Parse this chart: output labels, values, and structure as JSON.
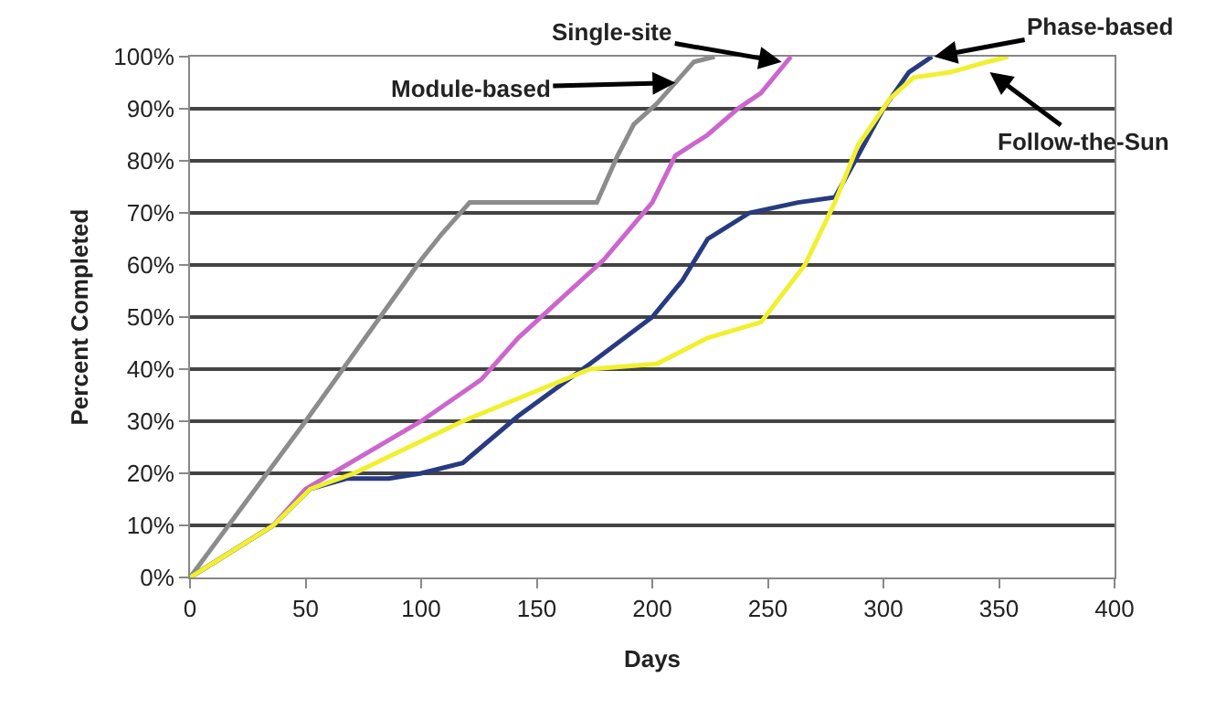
{
  "chart_data": {
    "type": "line",
    "xlabel": "Days",
    "ylabel": "Percent Completed",
    "xlim": [
      0,
      400
    ],
    "ylim": [
      0,
      100
    ],
    "xticks": [
      0,
      50,
      100,
      150,
      200,
      250,
      300,
      350,
      400
    ],
    "yticks": [
      {
        "value": 0,
        "label": "0%"
      },
      {
        "value": 10,
        "label": "10%"
      },
      {
        "value": 20,
        "label": "20%"
      },
      {
        "value": 30,
        "label": "30%"
      },
      {
        "value": 40,
        "label": "40%"
      },
      {
        "value": 50,
        "label": "50%"
      },
      {
        "value": 60,
        "label": "60%"
      },
      {
        "value": 70,
        "label": "70%"
      },
      {
        "value": 80,
        "label": "80%"
      },
      {
        "value": 90,
        "label": "90%"
      },
      {
        "value": 100,
        "label": "100%"
      }
    ],
    "grid": "y",
    "marker": "none",
    "line_style": "solid",
    "series": [
      {
        "color": "#8c8c8c",
        "x": [
          0,
          50,
          100,
          109,
          121,
          176,
          185,
          192,
          202,
          218,
          227
        ],
        "values": [
          0,
          30,
          61,
          66,
          72,
          72,
          81,
          87,
          91,
          99,
          100
        ]
      },
      {
        "color": "#cc66cc",
        "x": [
          0,
          36,
          50,
          100,
          126,
          142,
          179,
          200,
          210,
          224,
          237,
          247,
          260
        ],
        "values": [
          0,
          10,
          17,
          30,
          38,
          46,
          61,
          72,
          81,
          85,
          90,
          93,
          100
        ]
      },
      {
        "color": "#283a80",
        "x": [
          0,
          36,
          52,
          68,
          86,
          100,
          118,
          142,
          173,
          200,
          213,
          224,
          242,
          263,
          279,
          289,
          300,
          311,
          321
        ],
        "values": [
          0,
          10,
          17,
          19,
          19,
          20,
          22,
          31,
          41,
          50,
          57,
          65,
          70,
          72,
          73,
          81,
          90,
          97,
          100
        ]
      },
      {
        "color": "#f0f030",
        "x": [
          0,
          36,
          52,
          71,
          118,
          173,
          202,
          224,
          247,
          266,
          279,
          289,
          303,
          313,
          329,
          345,
          354
        ],
        "values": [
          0,
          10,
          17,
          20,
          30,
          40,
          41,
          46,
          49,
          60,
          72,
          83,
          92,
          96,
          97,
          99,
          100
        ]
      }
    ],
    "annotations": [
      {
        "text": "Module-based",
        "x": 210,
        "y": 95
      },
      {
        "text": "Single-site",
        "x": 256,
        "y": 99
      },
      {
        "text": "Phase-based",
        "x": 322,
        "y": 100
      },
      {
        "text": "Follow-the-Sun",
        "x": 346,
        "y": 97
      }
    ]
  }
}
